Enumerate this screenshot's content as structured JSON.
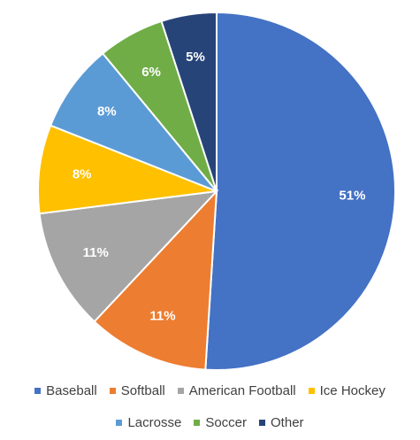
{
  "chart_data": {
    "type": "pie",
    "title": "",
    "categories": [
      "Baseball",
      "Softball",
      "American Football",
      "Ice Hockey",
      "Lacrosse",
      "Soccer",
      "Other"
    ],
    "values": [
      51,
      11,
      11,
      8,
      8,
      6,
      5
    ],
    "labels": [
      "51%",
      "11%",
      "11%",
      "8%",
      "8%",
      "6%",
      "5%"
    ],
    "colors": [
      "#4472C4",
      "#ED7D31",
      "#A5A5A5",
      "#FFC000",
      "#5B9BD5",
      "#70AD47",
      "#264478"
    ],
    "legend_position": "bottom",
    "start_angle": "12 o'clock",
    "direction": "clockwise"
  }
}
